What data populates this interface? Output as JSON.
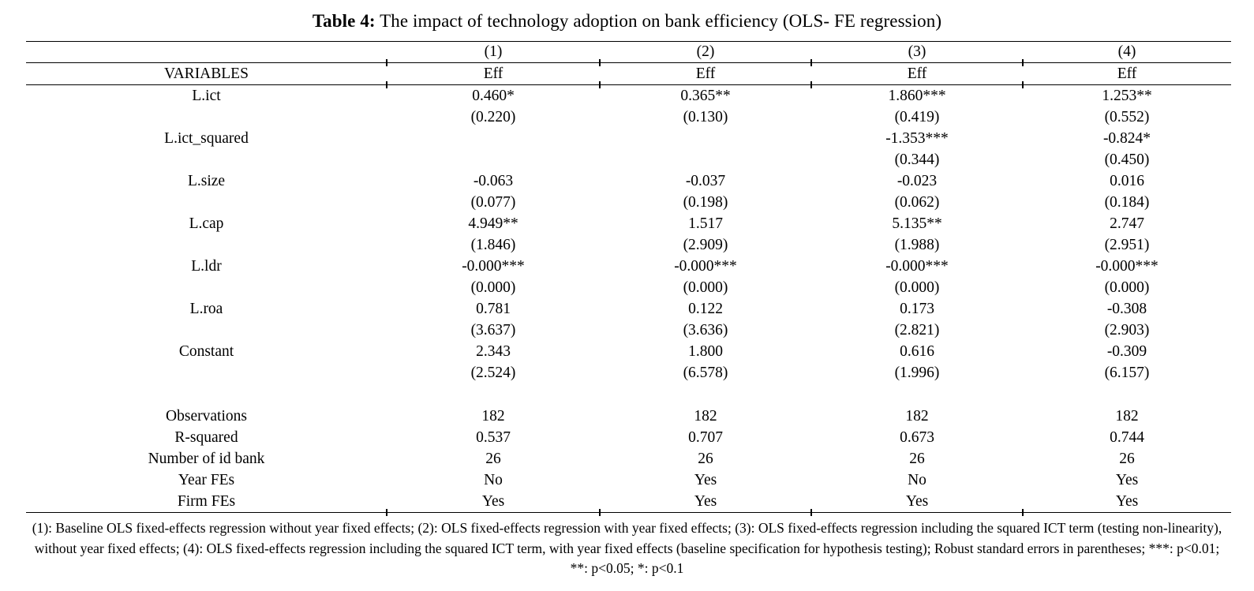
{
  "title": {
    "label": "Table 4:",
    "text": " The impact of technology adoption on bank efficiency (OLS- FE regression)"
  },
  "header": {
    "model_numbers": [
      "(1)",
      "(2)",
      "(3)",
      "(4)"
    ],
    "variables_label": "VARIABLES",
    "dep_vars": [
      "Eff",
      "Eff",
      "Eff",
      "Eff"
    ]
  },
  "rows": [
    {
      "label": "L.ict",
      "coefs": [
        "0.460*",
        "0.365**",
        "1.860***",
        "1.253**"
      ],
      "ses": [
        "(0.220)",
        "(0.130)",
        "(0.419)",
        "(0.552)"
      ]
    },
    {
      "label": "L.ict_squared",
      "coefs": [
        "",
        "",
        "-1.353***",
        "-0.824*"
      ],
      "ses": [
        "",
        "",
        "(0.344)",
        "(0.450)"
      ]
    },
    {
      "label": "L.size",
      "coefs": [
        "-0.063",
        "-0.037",
        "-0.023",
        "0.016"
      ],
      "ses": [
        "(0.077)",
        "(0.198)",
        "(0.062)",
        "(0.184)"
      ]
    },
    {
      "label": "L.cap",
      "coefs": [
        "4.949**",
        "1.517",
        "5.135**",
        "2.747"
      ],
      "ses": [
        "(1.846)",
        "(2.909)",
        "(1.988)",
        "(2.951)"
      ]
    },
    {
      "label": "L.ldr",
      "coefs": [
        "-0.000***",
        "-0.000***",
        "-0.000***",
        "-0.000***"
      ],
      "ses": [
        "(0.000)",
        "(0.000)",
        "(0.000)",
        "(0.000)"
      ]
    },
    {
      "label": "L.roa",
      "coefs": [
        "0.781",
        "0.122",
        "0.173",
        "-0.308"
      ],
      "ses": [
        "(3.637)",
        "(3.636)",
        "(2.821)",
        "(2.903)"
      ]
    },
    {
      "label": "Constant",
      "coefs": [
        "2.343",
        "1.800",
        "0.616",
        "-0.309"
      ],
      "ses": [
        "(2.524)",
        "(6.578)",
        "(1.996)",
        "(6.157)"
      ]
    }
  ],
  "stats": [
    {
      "label": "Observations",
      "values": [
        "182",
        "182",
        "182",
        "182"
      ]
    },
    {
      "label": "R-squared",
      "values": [
        "0.537",
        "0.707",
        "0.673",
        "0.744"
      ]
    },
    {
      "label": "Number of id bank",
      "values": [
        "26",
        "26",
        "26",
        "26"
      ]
    },
    {
      "label": "Year FEs",
      "values": [
        "No",
        "Yes",
        "No",
        "Yes"
      ]
    },
    {
      "label": "Firm FEs",
      "values": [
        "Yes",
        "Yes",
        "Yes",
        "Yes"
      ]
    }
  ],
  "footnote": "(1): Baseline OLS fixed-effects regression without year fixed effects; (2): OLS fixed-effects regression with year fixed effects; (3): OLS fixed-effects regression including the squared ICT term (testing non-linearity), without year fixed effects; (4): OLS fixed-effects regression including the squared ICT term, with year fixed effects (baseline specification for hypothesis testing); Robust standard errors in parentheses; ***: p<0.01; **: p<0.05; *: p<0.1"
}
